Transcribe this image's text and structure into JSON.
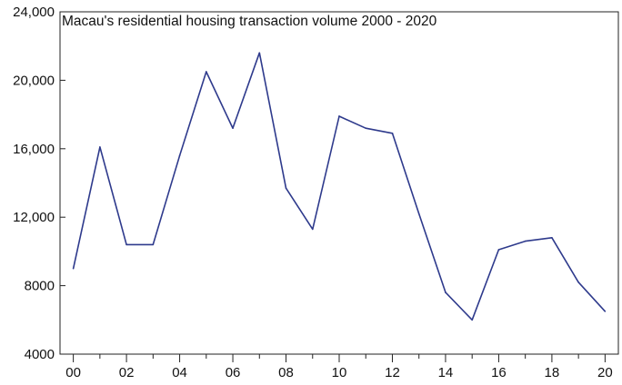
{
  "chart_data": {
    "type": "line",
    "title": "Macau's residential housing transaction volume 2000 - 2020",
    "xlabel": "",
    "ylabel": "",
    "x": [
      2000,
      2001,
      2002,
      2003,
      2004,
      2005,
      2006,
      2007,
      2008,
      2009,
      2010,
      2011,
      2012,
      2013,
      2014,
      2015,
      2016,
      2017,
      2018,
      2019,
      2020
    ],
    "series": [
      {
        "values": [
          9000,
          16100,
          10400,
          10400,
          15600,
          20500,
          17200,
          21600,
          13700,
          11300,
          17900,
          17200,
          16900,
          12200,
          7600,
          6000,
          10100,
          10600,
          10800,
          8200,
          6500
        ]
      }
    ],
    "xlim": [
      1999.5,
      2020.5
    ],
    "ylim": [
      4000,
      24000
    ],
    "x_ticks": [
      2000,
      2002,
      2004,
      2006,
      2008,
      2010,
      2012,
      2014,
      2016,
      2018,
      2020
    ],
    "x_tick_labels": [
      "00",
      "02",
      "04",
      "06",
      "08",
      "10",
      "12",
      "14",
      "16",
      "18",
      "20"
    ],
    "y_ticks": [
      4000,
      8000,
      12000,
      16000,
      20000,
      24000
    ],
    "y_tick_labels": [
      "4000",
      "8000",
      "12,000",
      "16,000",
      "20,000",
      "24,000"
    ],
    "grid": false,
    "line_color": "#2e3a8c"
  }
}
